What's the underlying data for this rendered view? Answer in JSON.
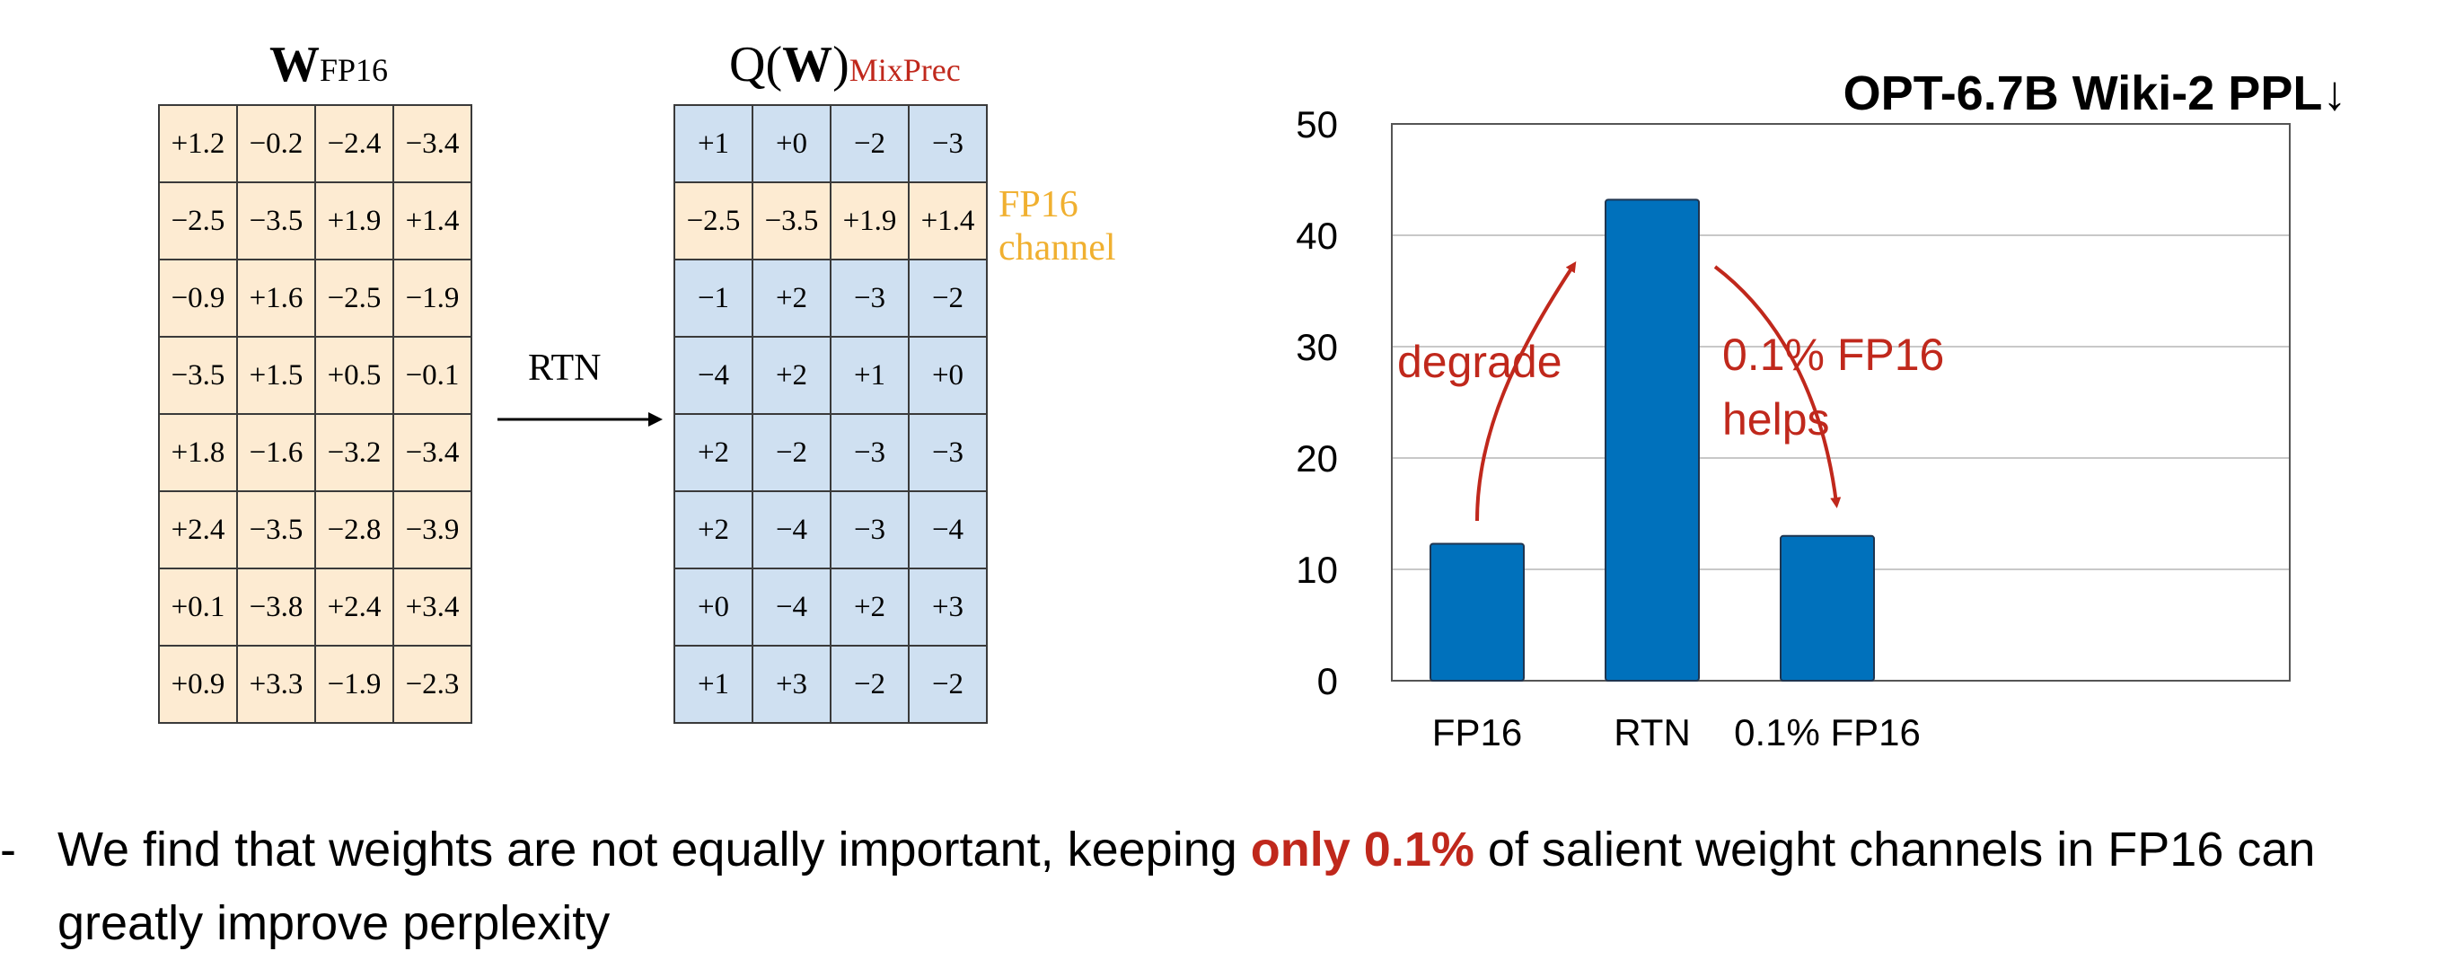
{
  "left_matrix": {
    "title_main": "W",
    "title_sub": "FP16",
    "rows": [
      [
        "+1.2",
        "−0.2",
        "−2.4",
        "−3.4"
      ],
      [
        "−2.5",
        "−3.5",
        "+1.9",
        "+1.4"
      ],
      [
        "−0.9",
        "+1.6",
        "−2.5",
        "−1.9"
      ],
      [
        "−3.5",
        "+1.5",
        "+0.5",
        "−0.1"
      ],
      [
        "+1.8",
        "−1.6",
        "−3.2",
        "−3.4"
      ],
      [
        "+2.4",
        "−3.5",
        "−2.8",
        "−3.9"
      ],
      [
        "+0.1",
        "−3.8",
        "+2.4",
        "+3.4"
      ],
      [
        "+0.9",
        "+3.3",
        "−1.9",
        "−2.3"
      ]
    ]
  },
  "arrow_label": "RTN",
  "right_matrix": {
    "title_prefix": "Q(",
    "title_bold": "W",
    "title_suffix": ")",
    "title_sub": "MixPrec",
    "fp16_row_index": 1,
    "fp16_label_line1": "FP16",
    "fp16_label_line2": "channel",
    "rows": [
      [
        "+1",
        "+0",
        "−2",
        "−3"
      ],
      [
        "−2.5",
        "−3.5",
        "+1.9",
        "+1.4"
      ],
      [
        "−1",
        "+2",
        "−3",
        "−2"
      ],
      [
        "−4",
        "+2",
        "+1",
        "+0"
      ],
      [
        "+2",
        "−2",
        "−3",
        "−3"
      ],
      [
        "+2",
        "−4",
        "−3",
        "−4"
      ],
      [
        "+0",
        "−4",
        "+2",
        "+3"
      ],
      [
        "+1",
        "+3",
        "−2",
        "−2"
      ]
    ]
  },
  "chart_data": {
    "type": "bar",
    "title": "OPT-6.7B Wiki-2 PPL↓",
    "categories": [
      "FP16",
      "RTN",
      "0.1% FP16"
    ],
    "values": [
      12.3,
      43.2,
      13.0
    ],
    "ylim": [
      0,
      50
    ],
    "yticks": [
      "0",
      "10",
      "20",
      "30",
      "40",
      "50"
    ],
    "grid": true,
    "bar_color": "#0071bc",
    "annotations": {
      "degrade": "degrade",
      "helps_line1": "0.1% FP16",
      "helps_line2": "helps",
      "color": "#c0281c"
    }
  },
  "bullet": {
    "dash": "-",
    "before": "We find that weights are not equally important, keeping ",
    "emph": "only 0.1%",
    "after": " of salient weight channels in FP16 can greatly improve perplexity"
  }
}
